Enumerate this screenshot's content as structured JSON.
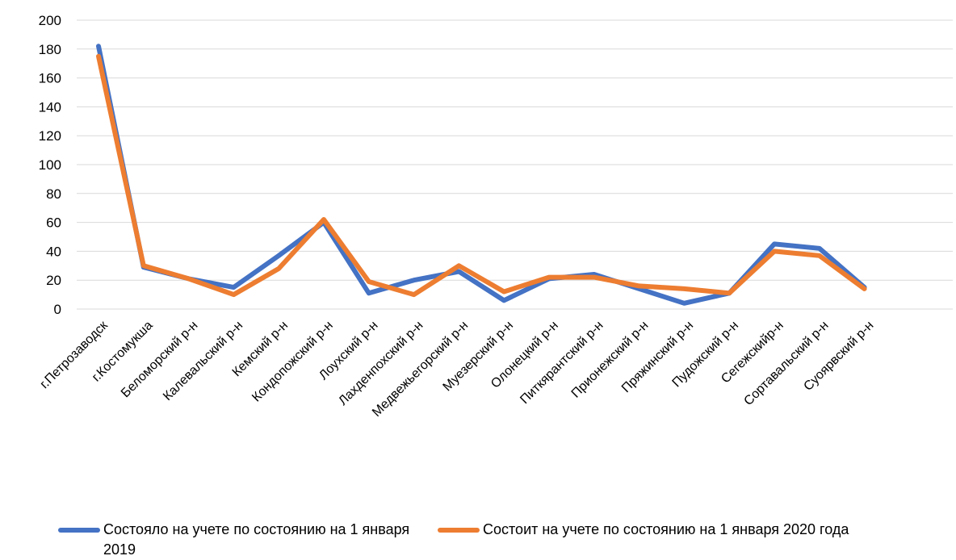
{
  "chart_data": {
    "type": "line",
    "title": "",
    "xlabel": "",
    "ylabel": "",
    "ylim": [
      0,
      200
    ],
    "yticks": [
      0,
      20,
      40,
      60,
      80,
      100,
      120,
      140,
      160,
      180,
      200
    ],
    "grid": true,
    "legend_position": "bottom",
    "categories": [
      "г.Петрозаводск",
      "г.Костомукша",
      "Беломорский р-н",
      "Калевальский р-н",
      "Кемский р-н",
      "Кондопожский р-н",
      "Лоухский р-н",
      "Лахденпохский р-н",
      "Медвежьегорский р-н",
      "Муезерский р-н",
      "Олонецкий р-н",
      "Питкярантский р-н",
      "Прионежский р-н",
      "Пряжинский р-н",
      "Пудожский р-н",
      "Сегежскийр-н",
      "Сортавальский р-н",
      "Суоярвский р-н"
    ],
    "series": [
      {
        "name": "Состояло на учете по состоянию на 1 января 2019",
        "color": "#4472C4",
        "values": [
          182,
          29,
          21,
          15,
          37,
          60,
          11,
          20,
          26,
          6,
          21,
          24,
          14,
          4,
          11,
          45,
          42,
          15
        ]
      },
      {
        "name": "Состоит на учете по состоянию на 1 января 2020 года",
        "color": "#ED7D31",
        "values": [
          175,
          30,
          21,
          10,
          28,
          62,
          19,
          10,
          30,
          12,
          22,
          22,
          16,
          14,
          11,
          40,
          37,
          14
        ]
      }
    ]
  }
}
